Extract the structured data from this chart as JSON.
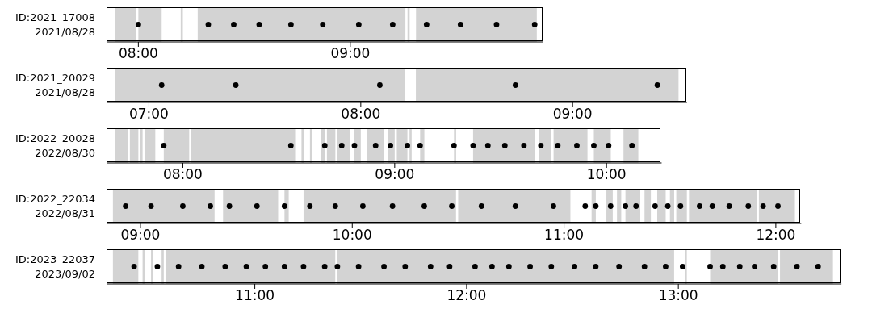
{
  "chart_data": [
    {
      "type": "scatter",
      "orientation": "horizontal",
      "categories": [
        "ID:2021_17008\n2021/08/28"
      ],
      "marker": "circle",
      "xlim": [
        7.85,
        9.91
      ],
      "xticks": [
        {
          "value": 8,
          "label": "08:00"
        },
        {
          "value": 9,
          "label": "09:00"
        }
      ],
      "series": [
        {
          "color": "#000000",
          "x": [
            "ID:2021_17008\n2021/08/28",
            "ID:2021_17008\n2021/08/28",
            "ID:2021_17008\n2021/08/28",
            "ID:2021_17008\n2021/08/28",
            "ID:2021_17008\n2021/08/28",
            "ID:2021_17008\n2021/08/28",
            "ID:2021_17008\n2021/08/28",
            "ID:2021_17008\n2021/08/28",
            "ID:2021_17008\n2021/08/28",
            "ID:2021_17008\n2021/08/28",
            "ID:2021_17008\n2021/08/28",
            "ID:2021_17008\n2021/08/28"
          ],
          "values": [
            8.0,
            8.33,
            8.45,
            8.57,
            8.72,
            8.87,
            9.04,
            9.2,
            9.36,
            9.52,
            9.69,
            9.87
          ]
        }
      ],
      "bands": [
        {
          "axis": "x",
          "from": 7.89,
          "to": 7.99,
          "color": "#d3d3d3"
        },
        {
          "axis": "x",
          "from": 8.0,
          "to": 8.11,
          "color": "#d3d3d3"
        },
        {
          "axis": "x",
          "from": 8.2,
          "to": 8.21,
          "color": "#d3d3d3"
        },
        {
          "axis": "x",
          "from": 8.28,
          "to": 9.26,
          "color": "#d3d3d3"
        },
        {
          "axis": "x",
          "from": 9.27,
          "to": 9.28,
          "color": "#d3d3d3"
        },
        {
          "axis": "x",
          "from": 9.31,
          "to": 9.88,
          "color": "#d3d3d3"
        }
      ]
    },
    {
      "type": "scatter",
      "orientation": "horizontal",
      "categories": [
        "ID:2021_20029\n2021/08/28"
      ],
      "marker": "circle",
      "xlim": [
        6.8,
        9.54
      ],
      "xticks": [
        {
          "value": 7,
          "label": "07:00"
        },
        {
          "value": 8,
          "label": "08:00"
        },
        {
          "value": 9,
          "label": "09:00"
        }
      ],
      "series": [
        {
          "color": "#000000",
          "x": [
            "ID:2021_20029\n2021/08/28",
            "ID:2021_20029\n2021/08/28",
            "ID:2021_20029\n2021/08/28",
            "ID:2021_20029\n2021/08/28",
            "ID:2021_20029\n2021/08/28"
          ],
          "values": [
            7.06,
            7.41,
            8.09,
            8.73,
            9.4
          ]
        }
      ],
      "bands": [
        {
          "axis": "x",
          "from": 6.84,
          "to": 8.21,
          "color": "#d3d3d3"
        },
        {
          "axis": "x",
          "from": 8.26,
          "to": 9.5,
          "color": "#d3d3d3"
        }
      ]
    },
    {
      "type": "scatter",
      "orientation": "horizontal",
      "categories": [
        "ID:2022_20028\n2022/08/30"
      ],
      "marker": "circle",
      "xlim": [
        7.64,
        10.26
      ],
      "xticks": [
        {
          "value": 8,
          "label": "08:00"
        },
        {
          "value": 9,
          "label": "09:00"
        },
        {
          "value": 10,
          "label": "10:00"
        }
      ],
      "series": [
        {
          "color": "#000000",
          "x": [
            "ID:2022_20028\n2022/08/30",
            "ID:2022_20028\n2022/08/30",
            "ID:2022_20028\n2022/08/30",
            "ID:2022_20028\n2022/08/30",
            "ID:2022_20028\n2022/08/30",
            "ID:2022_20028\n2022/08/30",
            "ID:2022_20028\n2022/08/30",
            "ID:2022_20028\n2022/08/30",
            "ID:2022_20028\n2022/08/30",
            "ID:2022_20028\n2022/08/30",
            "ID:2022_20028\n2022/08/30",
            "ID:2022_20028\n2022/08/30",
            "ID:2022_20028\n2022/08/30",
            "ID:2022_20028\n2022/08/30",
            "ID:2022_20028\n2022/08/30",
            "ID:2022_20028\n2022/08/30",
            "ID:2022_20028\n2022/08/30",
            "ID:2022_20028\n2022/08/30",
            "ID:2022_20028\n2022/08/30",
            "ID:2022_20028\n2022/08/30"
          ],
          "values": [
            7.91,
            8.51,
            8.67,
            8.75,
            8.81,
            8.91,
            8.98,
            9.06,
            9.12,
            9.28,
            9.37,
            9.44,
            9.52,
            9.61,
            9.69,
            9.77,
            9.86,
            9.94,
            10.01,
            10.12
          ]
        }
      ],
      "bands": [
        {
          "axis": "x",
          "from": 7.68,
          "to": 7.74,
          "color": "#d3d3d3"
        },
        {
          "axis": "x",
          "from": 7.75,
          "to": 7.79,
          "color": "#d3d3d3"
        },
        {
          "axis": "x",
          "from": 7.8,
          "to": 7.81,
          "color": "#d3d3d3"
        },
        {
          "axis": "x",
          "from": 7.82,
          "to": 7.87,
          "color": "#d3d3d3"
        },
        {
          "axis": "x",
          "from": 7.91,
          "to": 8.03,
          "color": "#d3d3d3"
        },
        {
          "axis": "x",
          "from": 8.04,
          "to": 8.53,
          "color": "#d3d3d3"
        },
        {
          "axis": "x",
          "from": 8.56,
          "to": 8.57,
          "color": "#d3d3d3"
        },
        {
          "axis": "x",
          "from": 8.6,
          "to": 8.61,
          "color": "#d3d3d3"
        },
        {
          "axis": "x",
          "from": 8.65,
          "to": 8.67,
          "color": "#d3d3d3"
        },
        {
          "axis": "x",
          "from": 8.68,
          "to": 8.72,
          "color": "#d3d3d3"
        },
        {
          "axis": "x",
          "from": 8.73,
          "to": 8.79,
          "color": "#d3d3d3"
        },
        {
          "axis": "x",
          "from": 8.81,
          "to": 8.84,
          "color": "#d3d3d3"
        },
        {
          "axis": "x",
          "from": 8.87,
          "to": 8.95,
          "color": "#d3d3d3"
        },
        {
          "axis": "x",
          "from": 8.97,
          "to": 9.0,
          "color": "#d3d3d3"
        },
        {
          "axis": "x",
          "from": 9.01,
          "to": 9.06,
          "color": "#d3d3d3"
        },
        {
          "axis": "x",
          "from": 9.07,
          "to": 9.08,
          "color": "#d3d3d3"
        },
        {
          "axis": "x",
          "from": 9.12,
          "to": 9.14,
          "color": "#d3d3d3"
        },
        {
          "axis": "x",
          "from": 9.28,
          "to": 9.29,
          "color": "#d3d3d3"
        },
        {
          "axis": "x",
          "from": 9.37,
          "to": 9.66,
          "color": "#d3d3d3"
        },
        {
          "axis": "x",
          "from": 9.68,
          "to": 9.74,
          "color": "#d3d3d3"
        },
        {
          "axis": "x",
          "from": 9.75,
          "to": 9.91,
          "color": "#d3d3d3"
        },
        {
          "axis": "x",
          "from": 9.94,
          "to": 10.02,
          "color": "#d3d3d3"
        },
        {
          "axis": "x",
          "from": 10.08,
          "to": 10.15,
          "color": "#d3d3d3"
        }
      ]
    },
    {
      "type": "scatter",
      "orientation": "horizontal",
      "categories": [
        "ID:2022_22034\n2022/08/31"
      ],
      "marker": "circle",
      "xlim": [
        8.84,
        12.12
      ],
      "xticks": [
        {
          "value": 9,
          "label": "09:00"
        },
        {
          "value": 10,
          "label": "10:00"
        },
        {
          "value": 11,
          "label": "11:00"
        },
        {
          "value": 12,
          "label": "12:00"
        }
      ],
      "series": [
        {
          "color": "#000000",
          "x": [
            "ID:2022_22034\n2022/08/31",
            "ID:2022_22034\n2022/08/31",
            "ID:2022_22034\n2022/08/31",
            "ID:2022_22034\n2022/08/31",
            "ID:2022_22034\n2022/08/31",
            "ID:2022_22034\n2022/08/31",
            "ID:2022_22034\n2022/08/31",
            "ID:2022_22034\n2022/08/31",
            "ID:2022_22034\n2022/08/31",
            "ID:2022_22034\n2022/08/31",
            "ID:2022_22034\n2022/08/31",
            "ID:2022_22034\n2022/08/31",
            "ID:2022_22034\n2022/08/31",
            "ID:2022_22034\n2022/08/31",
            "ID:2022_22034\n2022/08/31",
            "ID:2022_22034\n2022/08/31",
            "ID:2022_22034\n2022/08/31",
            "ID:2022_22034\n2022/08/31",
            "ID:2022_22034\n2022/08/31",
            "ID:2022_22034\n2022/08/31",
            "ID:2022_22034\n2022/08/31",
            "ID:2022_22034\n2022/08/31",
            "ID:2022_22034\n2022/08/31",
            "ID:2022_22034\n2022/08/31",
            "ID:2022_22034\n2022/08/31",
            "ID:2022_22034\n2022/08/31",
            "ID:2022_22034\n2022/08/31",
            "ID:2022_22034\n2022/08/31",
            "ID:2022_22034\n2022/08/31",
            "ID:2022_22034\n2022/08/31"
          ],
          "values": [
            8.93,
            9.05,
            9.2,
            9.33,
            9.42,
            9.55,
            9.68,
            9.8,
            9.92,
            10.05,
            10.19,
            10.34,
            10.47,
            10.61,
            10.77,
            10.95,
            11.1,
            11.15,
            11.22,
            11.29,
            11.34,
            11.43,
            11.49,
            11.55,
            11.64,
            11.7,
            11.78,
            11.87,
            11.94,
            12.01
          ]
        }
      ],
      "bands": [
        {
          "axis": "x",
          "from": 8.87,
          "to": 9.35,
          "color": "#d3d3d3"
        },
        {
          "axis": "x",
          "from": 9.39,
          "to": 9.65,
          "color": "#d3d3d3"
        },
        {
          "axis": "x",
          "from": 9.68,
          "to": 9.7,
          "color": "#d3d3d3"
        },
        {
          "axis": "x",
          "from": 9.77,
          "to": 10.49,
          "color": "#d3d3d3"
        },
        {
          "axis": "x",
          "from": 10.5,
          "to": 11.03,
          "color": "#d3d3d3"
        },
        {
          "axis": "x",
          "from": 11.13,
          "to": 11.15,
          "color": "#d3d3d3"
        },
        {
          "axis": "x",
          "from": 11.2,
          "to": 11.23,
          "color": "#d3d3d3"
        },
        {
          "axis": "x",
          "from": 11.25,
          "to": 11.27,
          "color": "#d3d3d3"
        },
        {
          "axis": "x",
          "from": 11.29,
          "to": 11.36,
          "color": "#d3d3d3"
        },
        {
          "axis": "x",
          "from": 11.38,
          "to": 11.41,
          "color": "#d3d3d3"
        },
        {
          "axis": "x",
          "from": 11.44,
          "to": 11.48,
          "color": "#d3d3d3"
        },
        {
          "axis": "x",
          "from": 11.5,
          "to": 11.52,
          "color": "#d3d3d3"
        },
        {
          "axis": "x",
          "from": 11.53,
          "to": 11.58,
          "color": "#d3d3d3"
        },
        {
          "axis": "x",
          "from": 11.59,
          "to": 11.91,
          "color": "#d3d3d3"
        },
        {
          "axis": "x",
          "from": 11.92,
          "to": 12.09,
          "color": "#d3d3d3"
        }
      ]
    },
    {
      "type": "scatter",
      "orientation": "horizontal",
      "categories": [
        "ID:2023_22037\n2023/09/02"
      ],
      "marker": "circle",
      "xlim": [
        10.3,
        13.77
      ],
      "xticks": [
        {
          "value": 11,
          "label": "11:00"
        },
        {
          "value": 12,
          "label": "12:00"
        },
        {
          "value": 13,
          "label": "13:00"
        }
      ],
      "series": [
        {
          "color": "#000000",
          "x": [
            "ID:2023_22037\n2023/09/02",
            "ID:2023_22037\n2023/09/02",
            "ID:2023_22037\n2023/09/02",
            "ID:2023_22037\n2023/09/02",
            "ID:2023_22037\n2023/09/02",
            "ID:2023_22037\n2023/09/02",
            "ID:2023_22037\n2023/09/02",
            "ID:2023_22037\n2023/09/02",
            "ID:2023_22037\n2023/09/02",
            "ID:2023_22037\n2023/09/02",
            "ID:2023_22037\n2023/09/02",
            "ID:2023_22037\n2023/09/02",
            "ID:2023_22037\n2023/09/02",
            "ID:2023_22037\n2023/09/02",
            "ID:2023_22037\n2023/09/02",
            "ID:2023_22037\n2023/09/02",
            "ID:2023_22037\n2023/09/02",
            "ID:2023_22037\n2023/09/02",
            "ID:2023_22037\n2023/09/02",
            "ID:2023_22037\n2023/09/02",
            "ID:2023_22037\n2023/09/02",
            "ID:2023_22037\n2023/09/02",
            "ID:2023_22037\n2023/09/02",
            "ID:2023_22037\n2023/09/02",
            "ID:2023_22037\n2023/09/02",
            "ID:2023_22037\n2023/09/02",
            "ID:2023_22037\n2023/09/02",
            "ID:2023_22037\n2023/09/02",
            "ID:2023_22037\n2023/09/02",
            "ID:2023_22037\n2023/09/02",
            "ID:2023_22037\n2023/09/02",
            "ID:2023_22037\n2023/09/02",
            "ID:2023_22037\n2023/09/02",
            "ID:2023_22037\n2023/09/02"
          ],
          "values": [
            10.43,
            10.54,
            10.64,
            10.75,
            10.86,
            10.96,
            11.05,
            11.14,
            11.23,
            11.33,
            11.39,
            11.49,
            11.61,
            11.71,
            11.83,
            11.92,
            12.04,
            12.12,
            12.2,
            12.3,
            12.4,
            12.51,
            12.61,
            12.72,
            12.84,
            12.94,
            13.02,
            13.15,
            13.21,
            13.29,
            13.36,
            13.45,
            13.56,
            13.66
          ]
        }
      ],
      "bands": [
        {
          "axis": "x",
          "from": 10.33,
          "to": 10.45,
          "color": "#d3d3d3"
        },
        {
          "axis": "x",
          "from": 10.47,
          "to": 10.48,
          "color": "#d3d3d3"
        },
        {
          "axis": "x",
          "from": 10.51,
          "to": 10.52,
          "color": "#d3d3d3"
        },
        {
          "axis": "x",
          "from": 10.56,
          "to": 10.57,
          "color": "#d3d3d3"
        },
        {
          "axis": "x",
          "from": 10.58,
          "to": 11.38,
          "color": "#d3d3d3"
        },
        {
          "axis": "x",
          "from": 11.39,
          "to": 12.98,
          "color": "#d3d3d3"
        },
        {
          "axis": "x",
          "from": 13.03,
          "to": 13.04,
          "color": "#d3d3d3"
        },
        {
          "axis": "x",
          "from": 13.15,
          "to": 13.47,
          "color": "#d3d3d3"
        },
        {
          "axis": "x",
          "from": 13.48,
          "to": 13.73,
          "color": "#d3d3d3"
        }
      ]
    }
  ]
}
